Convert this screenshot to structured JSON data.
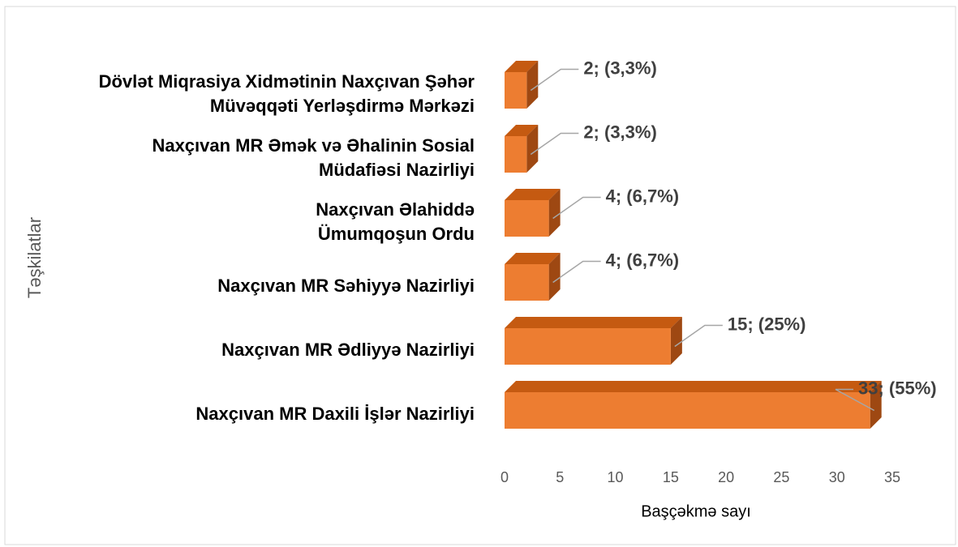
{
  "chart_data": {
    "type": "bar",
    "orientation": "horizontal",
    "categories": [
      "Dövlət Miqrasiya Xidmətinin Naxçıvan Şəhər Müvəqqəti Yerləşdirmə Mərkəzi",
      "Naxçıvan MR Əmək və Əhalinin Sosial Müdafiəsi Nazirliyi",
      "Naxçıvan Əlahiddə Ümumqoşun Ordu",
      "Naxçıvan MR Səhiyyə Nazirliyi",
      "Naxçıvan MR Ədliyyə Nazirliyi",
      "Naxçıvan MR Daxili İşlər Nazirliyi"
    ],
    "values": [
      2,
      2,
      4,
      4,
      15,
      33
    ],
    "value_labels": [
      "2; (3,3%)",
      "2; (3,3%)",
      "4; (6,7%)",
      "4; (6,7%)",
      "15; (25%)",
      "33; (55%)"
    ],
    "color": "#ed7d31",
    "xlim": [
      0,
      35
    ],
    "xticks": [
      0,
      5,
      10,
      15,
      20,
      25,
      30,
      35
    ],
    "x_label": "Başçəkmə sayı",
    "y_label": "Təşkilatlar"
  }
}
